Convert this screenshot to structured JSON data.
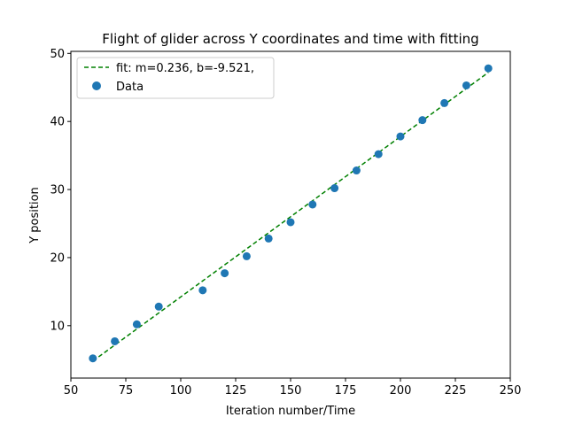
{
  "chart_data": {
    "type": "scatter",
    "title": "Flight of glider across Y coordinates and time with fitting",
    "xlabel": "Iteration number/Time",
    "ylabel": "Y position",
    "xlim": [
      50,
      250
    ],
    "ylim": [
      2.3,
      50.3
    ],
    "xticks": [
      50,
      75,
      100,
      125,
      150,
      175,
      200,
      225,
      250
    ],
    "yticks": [
      10,
      20,
      30,
      40,
      50
    ],
    "grid": false,
    "legend_placement": "upper-left",
    "series": [
      {
        "name": "Data",
        "kind": "scatter",
        "color": "#1f77b4",
        "x": [
          60,
          70,
          80,
          90,
          110,
          120,
          130,
          140,
          150,
          160,
          170,
          180,
          190,
          200,
          210,
          220,
          230,
          240
        ],
        "y": [
          5.2,
          7.7,
          10.2,
          12.8,
          15.2,
          17.7,
          20.2,
          22.8,
          25.2,
          27.8,
          30.2,
          32.8,
          35.2,
          37.8,
          40.2,
          42.7,
          45.3,
          47.8
        ]
      },
      {
        "name": "fit: m=0.236, b=-9.521,",
        "kind": "line",
        "style": "dashed",
        "color": "#008000",
        "x": [
          60,
          240
        ],
        "y": [
          4.8,
          47.2
        ]
      }
    ],
    "legend": [
      {
        "label": "fit: m=0.236, b=-9.521,",
        "marker": "dashed-line",
        "color": "#008000"
      },
      {
        "label": "Data",
        "marker": "circle",
        "color": "#1f77b4"
      }
    ]
  }
}
